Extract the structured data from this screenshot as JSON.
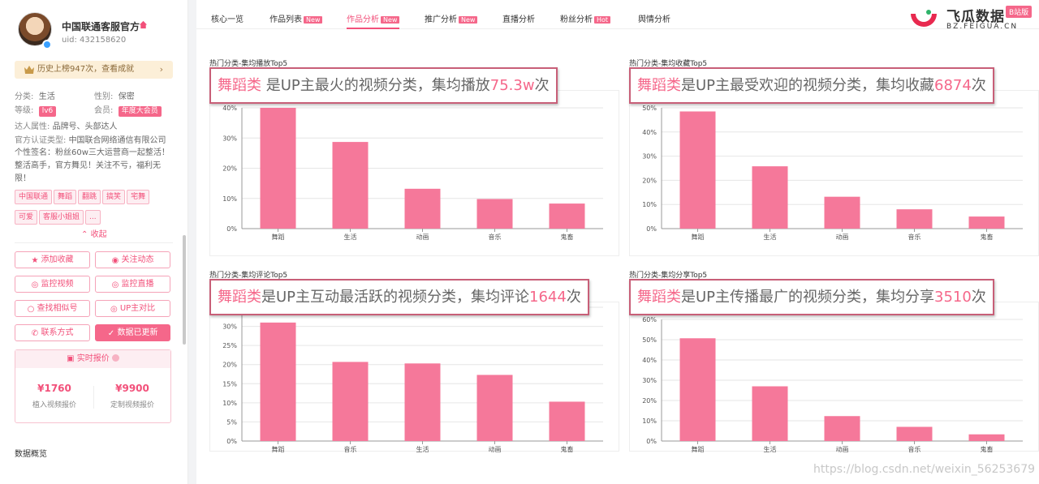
{
  "profile": {
    "name": "中国联通客服官方",
    "uid": "uid: 432158620",
    "history": "历史上榜947次，查看成就",
    "category_k": "分类:",
    "category_v": "生活",
    "gender_k": "性别:",
    "gender_v": "保密",
    "level_k": "等级:",
    "level_v": "lv6",
    "member_k": "会员:",
    "member_v": "年度大会员",
    "attr_k": "达人属性:",
    "attr_v": "品牌号、头部达人",
    "cert_k": "官方认证类型:",
    "cert_v": "中国联合网络通信有限公司",
    "sig": "个性签名：粉丝60w三大运营商一起整活！整活高手，官方舞见！关注不亏，福利无限！",
    "tags": [
      "中国联通",
      "舞蹈",
      "翻跳",
      "搞笑",
      "宅舞",
      "可爱",
      "客服小姐姐",
      "..."
    ],
    "collapse": "收起"
  },
  "actions": {
    "favorite": "添加收藏",
    "follow": "关注动态",
    "monitor_video": "监控视频",
    "monitor_live": "监控直播",
    "find_similar": "查找相似号",
    "compare": "UP主对比",
    "contact": "联系方式",
    "updated": "数据已更新"
  },
  "pricing": {
    "title": "实时报价",
    "embed_value": "¥1760",
    "embed_label": "植入视频报价",
    "custom_value": "¥9900",
    "custom_label": "定制视频报价"
  },
  "overview": "数据概览",
  "tabs": [
    {
      "label": "核心一览",
      "badge": ""
    },
    {
      "label": "作品列表",
      "badge": "New"
    },
    {
      "label": "作品分析",
      "badge": "New"
    },
    {
      "label": "推广分析",
      "badge": "New"
    },
    {
      "label": "直播分析",
      "badge": ""
    },
    {
      "label": "粉丝分析",
      "badge": "Hot"
    },
    {
      "label": "舆情分析",
      "badge": ""
    }
  ],
  "logo": {
    "name": "飞瓜数据",
    "domain": "BZ.FEIGUA.CN",
    "badge": "B站版"
  },
  "watermark": "https://blog.csdn.net/weixin_56253679",
  "colors": {
    "accent": "#f5678a",
    "callout_border": "#c85f78"
  },
  "panels": [
    {
      "title": "热门分类-集均播放Top5",
      "hl": "舞蹈类",
      "text": " 是UP主最火的视频分类，集均播放",
      "value": "75.3w",
      "suffix": "次"
    },
    {
      "title": "热门分类-集均收藏Top5",
      "hl": "舞蹈类",
      "text": "是UP主最受欢迎的视频分类，集均收藏",
      "value": "6874",
      "suffix": "次"
    },
    {
      "title": "热门分类-集均评论Top5",
      "hl": "舞蹈类",
      "text": "是UP主互动最活跃的视频分类，集均评论",
      "value": "1644",
      "suffix": "次"
    },
    {
      "title": "热门分类-集均分享Top5",
      "hl": "舞蹈类",
      "text": "是UP主传播最广的视频分类，集均分享",
      "value": "3510",
      "suffix": "次"
    }
  ],
  "chart_data": [
    {
      "type": "bar",
      "title": "热门分类-集均播放Top5",
      "categories": [
        "舞蹈",
        "生活",
        "动画",
        "音乐",
        "鬼畜"
      ],
      "values": [
        40,
        28.7,
        13.2,
        9.8,
        8.3
      ],
      "yticks": [
        "0%",
        "10%",
        "20%",
        "30%",
        "40%"
      ],
      "ylim": [
        0,
        40
      ],
      "color": "#f5789a"
    },
    {
      "type": "bar",
      "title": "热门分类-集均收藏Top5",
      "categories": [
        "舞蹈",
        "生活",
        "动画",
        "音乐",
        "鬼畜"
      ],
      "values": [
        48.5,
        25.8,
        13.2,
        8,
        5
      ],
      "yticks": [
        "0%",
        "10%",
        "20%",
        "30%",
        "40%",
        "50%"
      ],
      "ylim": [
        0,
        50
      ],
      "color": "#f5789a"
    },
    {
      "type": "bar",
      "title": "热门分类-集均评论Top5",
      "categories": [
        "舞蹈",
        "音乐",
        "生活",
        "动画",
        "鬼畜"
      ],
      "values": [
        31,
        20.7,
        20.3,
        17.3,
        10.3
      ],
      "yticks": [
        "0%",
        "5%",
        "10%",
        "15%",
        "20%",
        "25%",
        "30%",
        "35%"
      ],
      "ylim": [
        0,
        35
      ],
      "color": "#f5789a"
    },
    {
      "type": "bar",
      "title": "热门分类-集均分享Top5",
      "categories": [
        "舞蹈",
        "生活",
        "动画",
        "音乐",
        "鬼畜"
      ],
      "values": [
        50.7,
        27,
        12.3,
        7,
        3.3
      ],
      "yticks": [
        "0%",
        "10%",
        "20%",
        "30%",
        "40%",
        "50%",
        "60%"
      ],
      "ylim": [
        0,
        60
      ],
      "color": "#f5789a"
    }
  ]
}
